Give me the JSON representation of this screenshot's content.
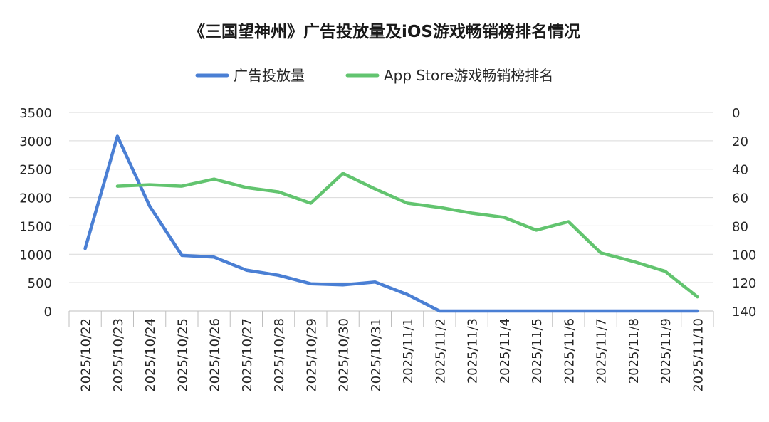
{
  "chart_data": {
    "type": "line",
    "title": "《三国望神州》广告投放量及iOS游戏畅销榜排名情况",
    "categories": [
      "2025/10/22",
      "2025/10/23",
      "2025/10/24",
      "2025/10/25",
      "2025/10/26",
      "2025/10/27",
      "2025/10/28",
      "2025/10/29",
      "2025/10/30",
      "2025/10/31",
      "2025/11/1",
      "2025/11/2",
      "2025/11/3",
      "2025/11/4",
      "2025/11/5",
      "2025/11/6",
      "2025/11/7",
      "2025/11/8",
      "2025/11/9",
      "2025/11/10"
    ],
    "series": [
      {
        "name": "广告投放量",
        "axis": "left",
        "color": "#4a7fd4",
        "values": [
          1100,
          3080,
          1850,
          980,
          950,
          720,
          630,
          480,
          460,
          510,
          290,
          0,
          0,
          0,
          0,
          0,
          0,
          0,
          0,
          0
        ]
      },
      {
        "name": "App Store游戏畅销榜排名",
        "axis": "right",
        "color": "#62c46f",
        "values": [
          null,
          52,
          51,
          52,
          47,
          53,
          56,
          64,
          43,
          54,
          64,
          67,
          71,
          74,
          83,
          77,
          99,
          105,
          112,
          130
        ]
      }
    ],
    "left_axis": {
      "min": 0,
      "max": 3500,
      "step": 500,
      "ticks": [
        "0",
        "500",
        "1000",
        "1500",
        "2000",
        "2500",
        "3000",
        "3500"
      ]
    },
    "right_axis": {
      "min": 0,
      "max": 140,
      "step": 20,
      "reversed": true,
      "ticks": [
        "0",
        "20",
        "40",
        "60",
        "80",
        "100",
        "120",
        "140"
      ]
    },
    "grid": true,
    "legend_position": "top-center"
  }
}
